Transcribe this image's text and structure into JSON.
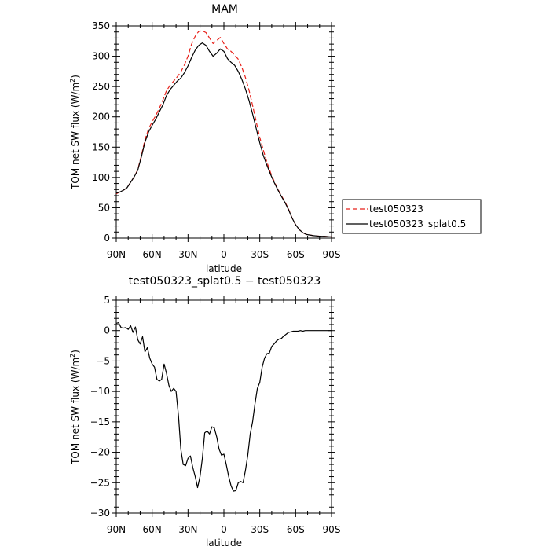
{
  "chart_data": [
    {
      "type": "line",
      "title": "MAM",
      "xlabel": "latitude",
      "ylabel": "TOM net SW flux (W/m",
      "ylabel_sup": "2",
      "ylabel_end": ")",
      "xlim": [
        90,
        -90
      ],
      "ylim": [
        0,
        350
      ],
      "xticks": [
        90,
        60,
        30,
        0,
        -30,
        -60,
        -90
      ],
      "xtick_labels": [
        "90N",
        "60N",
        "30N",
        "0",
        "30S",
        "60S",
        "90S"
      ],
      "yticks": [
        0,
        50,
        100,
        150,
        200,
        250,
        300,
        350
      ],
      "ytick_labels": [
        "0",
        "50",
        "100",
        "150",
        "200",
        "250",
        "300",
        "350"
      ],
      "legend_position": "right",
      "series": [
        {
          "name": "test050323",
          "color": "#e8211a",
          "dash": "dashed",
          "x": [
            90,
            87,
            84,
            81,
            78,
            75,
            72,
            69,
            66,
            63,
            60,
            57,
            54,
            51,
            48,
            45,
            42,
            39,
            36,
            33,
            30,
            27,
            24,
            21,
            18,
            15,
            12,
            9,
            6,
            3,
            0,
            -3,
            -6,
            -9,
            -12,
            -15,
            -18,
            -21,
            -24,
            -27,
            -30,
            -33,
            -36,
            -39,
            -42,
            -45,
            -48,
            -51,
            -54,
            -57,
            -60,
            -63,
            -66,
            -69,
            -72,
            -75,
            -78,
            -81,
            -84,
            -87,
            -90
          ],
          "values": [
            73,
            76,
            79,
            83,
            92,
            101,
            113,
            136,
            162,
            180,
            192,
            202,
            214,
            228,
            243,
            252,
            259,
            266,
            274,
            286,
            300,
            320,
            333,
            341,
            342,
            339,
            330,
            321,
            326,
            331,
            321,
            312,
            308,
            302,
            295,
            282,
            265,
            244,
            219,
            192,
            166,
            145,
            125,
            108,
            94,
            81,
            70,
            60,
            48,
            33,
            22,
            14,
            9,
            6,
            5,
            4,
            3.5,
            3,
            3,
            2.5,
            2
          ]
        },
        {
          "name": "test050323_splat0.5",
          "color": "#000000",
          "dash": "solid",
          "x": [
            90,
            87,
            84,
            81,
            78,
            75,
            72,
            69,
            66,
            63,
            60,
            57,
            54,
            51,
            48,
            45,
            42,
            39,
            36,
            33,
            30,
            27,
            24,
            21,
            18,
            15,
            12,
            9,
            6,
            3,
            0,
            -3,
            -6,
            -9,
            -12,
            -15,
            -18,
            -21,
            -24,
            -27,
            -30,
            -33,
            -36,
            -39,
            -42,
            -45,
            -48,
            -51,
            -54,
            -57,
            -60,
            -63,
            -66,
            -69,
            -72,
            -75,
            -78,
            -81,
            -84,
            -87,
            -90
          ],
          "values": [
            74,
            76,
            79,
            83,
            92,
            101,
            112,
            134,
            158,
            175,
            186,
            196,
            208,
            220,
            235,
            245,
            252,
            259,
            264,
            273,
            284,
            298,
            310,
            318,
            322,
            318,
            308,
            300,
            305,
            312,
            308,
            296,
            290,
            285,
            275,
            262,
            246,
            227,
            205,
            181,
            157,
            136,
            120,
            105,
            92,
            80,
            69,
            59,
            47,
            33,
            22,
            14,
            9,
            6,
            5,
            4,
            3.5,
            3,
            3,
            2.5,
            2
          ]
        }
      ]
    },
    {
      "type": "line",
      "title": "test050323_splat0.5 − test050323",
      "xlabel": "latitude",
      "ylabel": "TOM net SW flux (W/m",
      "ylabel_sup": "2",
      "ylabel_end": ")",
      "xlim": [
        90,
        -90
      ],
      "ylim": [
        -30,
        5
      ],
      "xticks": [
        90,
        60,
        30,
        0,
        -30,
        -60,
        -90
      ],
      "xtick_labels": [
        "90N",
        "60N",
        "30N",
        "0",
        "30S",
        "60S",
        "90S"
      ],
      "yticks": [
        -30,
        -25,
        -20,
        -15,
        -10,
        -5,
        0,
        5
      ],
      "ytick_labels": [
        "−30",
        "−25",
        "−20",
        "−15",
        "−10",
        "−5",
        "0",
        "5"
      ],
      "series": [
        {
          "color": "#000000",
          "dash": "solid",
          "x": [
            90,
            88,
            86,
            84,
            82,
            80,
            78,
            76,
            74,
            72,
            70,
            68,
            66,
            64,
            62,
            60,
            58,
            56,
            54,
            52,
            50,
            48,
            46,
            44,
            42,
            40,
            38,
            36,
            34,
            32,
            30,
            28,
            26,
            24,
            22,
            20,
            18,
            16,
            14,
            12,
            10,
            8,
            6,
            4,
            2,
            0,
            -2,
            -4,
            -6,
            -8,
            -10,
            -12,
            -14,
            -16,
            -18,
            -20,
            -22,
            -24,
            -26,
            -28,
            -30,
            -32,
            -34,
            -36,
            -38,
            -40,
            -42,
            -44,
            -46,
            -48,
            -50,
            -52,
            -54,
            -56,
            -58,
            -60,
            -62,
            -64,
            -66,
            -68,
            -70,
            -72,
            -74,
            -76,
            -78,
            -80,
            -82,
            -84,
            -86,
            -88,
            -90
          ],
          "values": [
            1.2,
            1.3,
            0.5,
            0.4,
            0.5,
            0.2,
            0.8,
            -0.3,
            0.6,
            -1.5,
            -2.2,
            -1.0,
            -3.5,
            -2.8,
            -4.5,
            -5.5,
            -6.0,
            -8.0,
            -8.3,
            -8.0,
            -5.5,
            -7.0,
            -9.0,
            -10.0,
            -9.5,
            -10.0,
            -14.0,
            -19.5,
            -22.0,
            -22.2,
            -21.0,
            -20.6,
            -22.5,
            -24.0,
            -25.8,
            -24.0,
            -21.0,
            -16.8,
            -16.5,
            -17.0,
            -15.8,
            -16.0,
            -17.5,
            -19.5,
            -20.5,
            -20.3,
            -22.0,
            -24.0,
            -25.5,
            -26.4,
            -26.3,
            -25.0,
            -24.8,
            -25.0,
            -23.0,
            -20.5,
            -17.0,
            -15.0,
            -12.0,
            -9.5,
            -8.5,
            -6.0,
            -4.5,
            -3.8,
            -3.7,
            -2.6,
            -2.2,
            -1.7,
            -1.4,
            -1.3,
            -0.9,
            -0.6,
            -0.3,
            -0.2,
            -0.1,
            -0.1,
            -0.1,
            0.0,
            -0.1,
            0.0,
            0.0,
            0.0,
            0.0,
            0.0,
            0.0,
            0.0,
            0.0,
            0.0,
            0.0,
            0.0,
            0.0
          ]
        }
      ]
    }
  ]
}
